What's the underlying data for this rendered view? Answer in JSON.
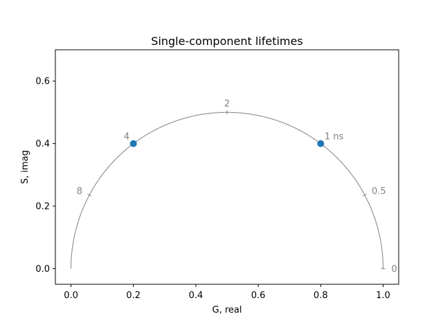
{
  "chart_data": {
    "type": "scatter",
    "title": "Single-component lifetimes",
    "xlabel": "G, real",
    "ylabel": "S, imag",
    "xlim": [
      -0.05,
      1.05
    ],
    "ylim": [
      -0.05,
      0.7
    ],
    "x_ticks": [
      0.0,
      0.2,
      0.4,
      0.6,
      0.8,
      1.0
    ],
    "x_tick_labels": [
      "0.0",
      "0.2",
      "0.4",
      "0.6",
      "0.8",
      "1.0"
    ],
    "y_ticks": [
      0.0,
      0.2,
      0.4,
      0.6
    ],
    "y_tick_labels": [
      "0.0",
      "0.2",
      "0.4",
      "0.6"
    ],
    "grid": false,
    "series": [
      {
        "x": [
          0.8,
          0.2
        ],
        "y": [
          0.4,
          0.4
        ],
        "color": "#1f77b4",
        "marker": "circle"
      }
    ],
    "universal_semicircle": {
      "center": [
        0.5,
        0.0
      ],
      "radius": 0.5,
      "color": "#808080"
    },
    "semicircle_ticks": [
      {
        "label": "0",
        "g": 1.0,
        "s": 0.0
      },
      {
        "label": "0.5",
        "g": 0.941,
        "s": 0.235
      },
      {
        "label": "1 ns",
        "g": 0.8,
        "s": 0.4
      },
      {
        "label": "2",
        "g": 0.5,
        "s": 0.5
      },
      {
        "label": "4",
        "g": 0.2,
        "s": 0.4
      },
      {
        "label": "8",
        "g": 0.059,
        "s": 0.235
      }
    ]
  }
}
